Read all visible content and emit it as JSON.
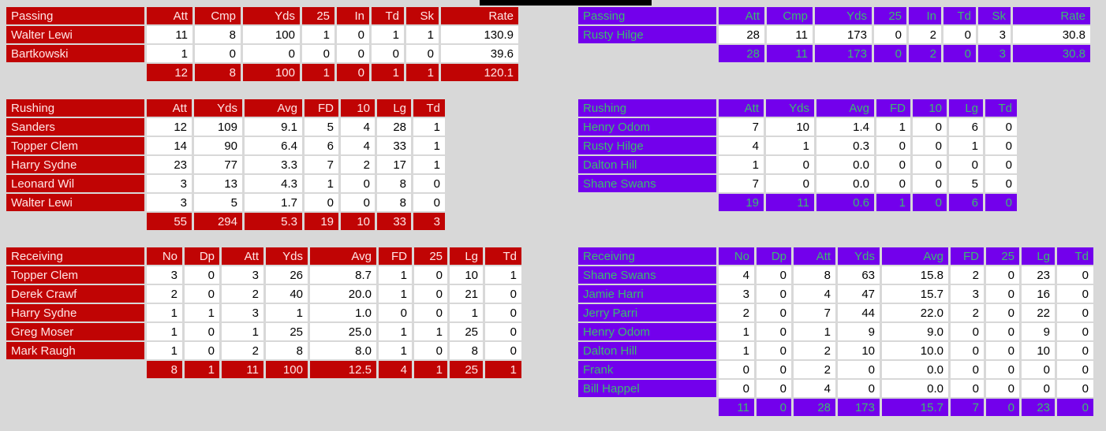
{
  "colors": {
    "background": "#d8d8d8",
    "left_team_accent": "#c00404",
    "left_team_text": "#ffe6e6",
    "right_team_accent": "#7300ec",
    "right_team_text": "#3cba70"
  },
  "left_team": {
    "passing": {
      "label": "Passing",
      "columns": [
        "Att",
        "Cmp",
        "Yds",
        "25",
        "In",
        "Td",
        "Sk",
        "Rate"
      ],
      "rows": [
        {
          "name": "Walter Lewi",
          "values": [
            "11",
            "8",
            "100",
            "1",
            "0",
            "1",
            "1",
            "130.9"
          ]
        },
        {
          "name": "Bartkowski",
          "values": [
            "1",
            "0",
            "0",
            "0",
            "0",
            "0",
            "0",
            "39.6"
          ]
        }
      ],
      "totals": [
        "12",
        "8",
        "100",
        "1",
        "0",
        "1",
        "1",
        "120.1"
      ]
    },
    "rushing": {
      "label": "Rushing",
      "columns": [
        "Att",
        "Yds",
        "Avg",
        "FD",
        "10",
        "Lg",
        "Td"
      ],
      "rows": [
        {
          "name": "Sanders",
          "values": [
            "12",
            "109",
            "9.1",
            "5",
            "4",
            "28",
            "1"
          ]
        },
        {
          "name": "Topper Clem",
          "values": [
            "14",
            "90",
            "6.4",
            "6",
            "4",
            "33",
            "1"
          ]
        },
        {
          "name": "Harry Sydne",
          "values": [
            "23",
            "77",
            "3.3",
            "7",
            "2",
            "17",
            "1"
          ]
        },
        {
          "name": "Leonard Wil",
          "values": [
            "3",
            "13",
            "4.3",
            "1",
            "0",
            "8",
            "0"
          ]
        },
        {
          "name": "Walter Lewi",
          "values": [
            "3",
            "5",
            "1.7",
            "0",
            "0",
            "8",
            "0"
          ]
        }
      ],
      "totals": [
        "55",
        "294",
        "5.3",
        "19",
        "10",
        "33",
        "3"
      ]
    },
    "receiving": {
      "label": "Receiving",
      "columns": [
        "No",
        "Dp",
        "Att",
        "Yds",
        "Avg",
        "FD",
        "25",
        "Lg",
        "Td"
      ],
      "rows": [
        {
          "name": "Topper Clem",
          "values": [
            "3",
            "0",
            "3",
            "26",
            "8.7",
            "1",
            "0",
            "10",
            "1"
          ]
        },
        {
          "name": "Derek Crawf",
          "values": [
            "2",
            "0",
            "2",
            "40",
            "20.0",
            "1",
            "0",
            "21",
            "0"
          ]
        },
        {
          "name": "Harry Sydne",
          "values": [
            "1",
            "1",
            "3",
            "1",
            "1.0",
            "0",
            "0",
            "1",
            "0"
          ]
        },
        {
          "name": "Greg Moser",
          "values": [
            "1",
            "0",
            "1",
            "25",
            "25.0",
            "1",
            "1",
            "25",
            "0"
          ]
        },
        {
          "name": "Mark Raugh",
          "values": [
            "1",
            "0",
            "2",
            "8",
            "8.0",
            "1",
            "0",
            "8",
            "0"
          ]
        }
      ],
      "totals": [
        "8",
        "1",
        "11",
        "100",
        "12.5",
        "4",
        "1",
        "25",
        "1"
      ]
    }
  },
  "right_team": {
    "passing": {
      "label": "Passing",
      "columns": [
        "Att",
        "Cmp",
        "Yds",
        "25",
        "In",
        "Td",
        "Sk",
        "Rate"
      ],
      "rows": [
        {
          "name": "Rusty Hilge",
          "values": [
            "28",
            "11",
            "173",
            "0",
            "2",
            "0",
            "3",
            "30.8"
          ]
        }
      ],
      "totals": [
        "28",
        "11",
        "173",
        "0",
        "2",
        "0",
        "3",
        "30.8"
      ]
    },
    "rushing": {
      "label": "Rushing",
      "columns": [
        "Att",
        "Yds",
        "Avg",
        "FD",
        "10",
        "Lg",
        "Td"
      ],
      "rows": [
        {
          "name": "Henry Odom",
          "values": [
            "7",
            "10",
            "1.4",
            "1",
            "0",
            "6",
            "0"
          ]
        },
        {
          "name": "Rusty Hilge",
          "values": [
            "4",
            "1",
            "0.3",
            "0",
            "0",
            "1",
            "0"
          ]
        },
        {
          "name": "Dalton Hill",
          "values": [
            "1",
            "0",
            "0.0",
            "0",
            "0",
            "0",
            "0"
          ]
        },
        {
          "name": "Shane Swans",
          "values": [
            "7",
            "0",
            "0.0",
            "0",
            "0",
            "5",
            "0"
          ]
        }
      ],
      "totals": [
        "19",
        "11",
        "0.6",
        "1",
        "0",
        "6",
        "0"
      ]
    },
    "receiving": {
      "label": "Receiving",
      "columns": [
        "No",
        "Dp",
        "Att",
        "Yds",
        "Avg",
        "FD",
        "25",
        "Lg",
        "Td"
      ],
      "rows": [
        {
          "name": "Shane Swans",
          "values": [
            "4",
            "0",
            "8",
            "63",
            "15.8",
            "2",
            "0",
            "23",
            "0"
          ]
        },
        {
          "name": "Jamie Harri",
          "values": [
            "3",
            "0",
            "4",
            "47",
            "15.7",
            "3",
            "0",
            "16",
            "0"
          ]
        },
        {
          "name": "Jerry Parri",
          "values": [
            "2",
            "0",
            "7",
            "44",
            "22.0",
            "2",
            "0",
            "22",
            "0"
          ]
        },
        {
          "name": "Henry Odom",
          "values": [
            "1",
            "0",
            "1",
            "9",
            "9.0",
            "0",
            "0",
            "9",
            "0"
          ]
        },
        {
          "name": "Dalton Hill",
          "values": [
            "1",
            "0",
            "2",
            "10",
            "10.0",
            "0",
            "0",
            "10",
            "0"
          ]
        },
        {
          "name": "Frank",
          "values": [
            "0",
            "0",
            "2",
            "0",
            "0.0",
            "0",
            "0",
            "0",
            "0"
          ]
        },
        {
          "name": "Bill Happel",
          "values": [
            "0",
            "0",
            "4",
            "0",
            "0.0",
            "0",
            "0",
            "0",
            "0"
          ]
        }
      ],
      "totals": [
        "11",
        "0",
        "28",
        "173",
        "15.7",
        "7",
        "0",
        "23",
        "0"
      ]
    }
  }
}
